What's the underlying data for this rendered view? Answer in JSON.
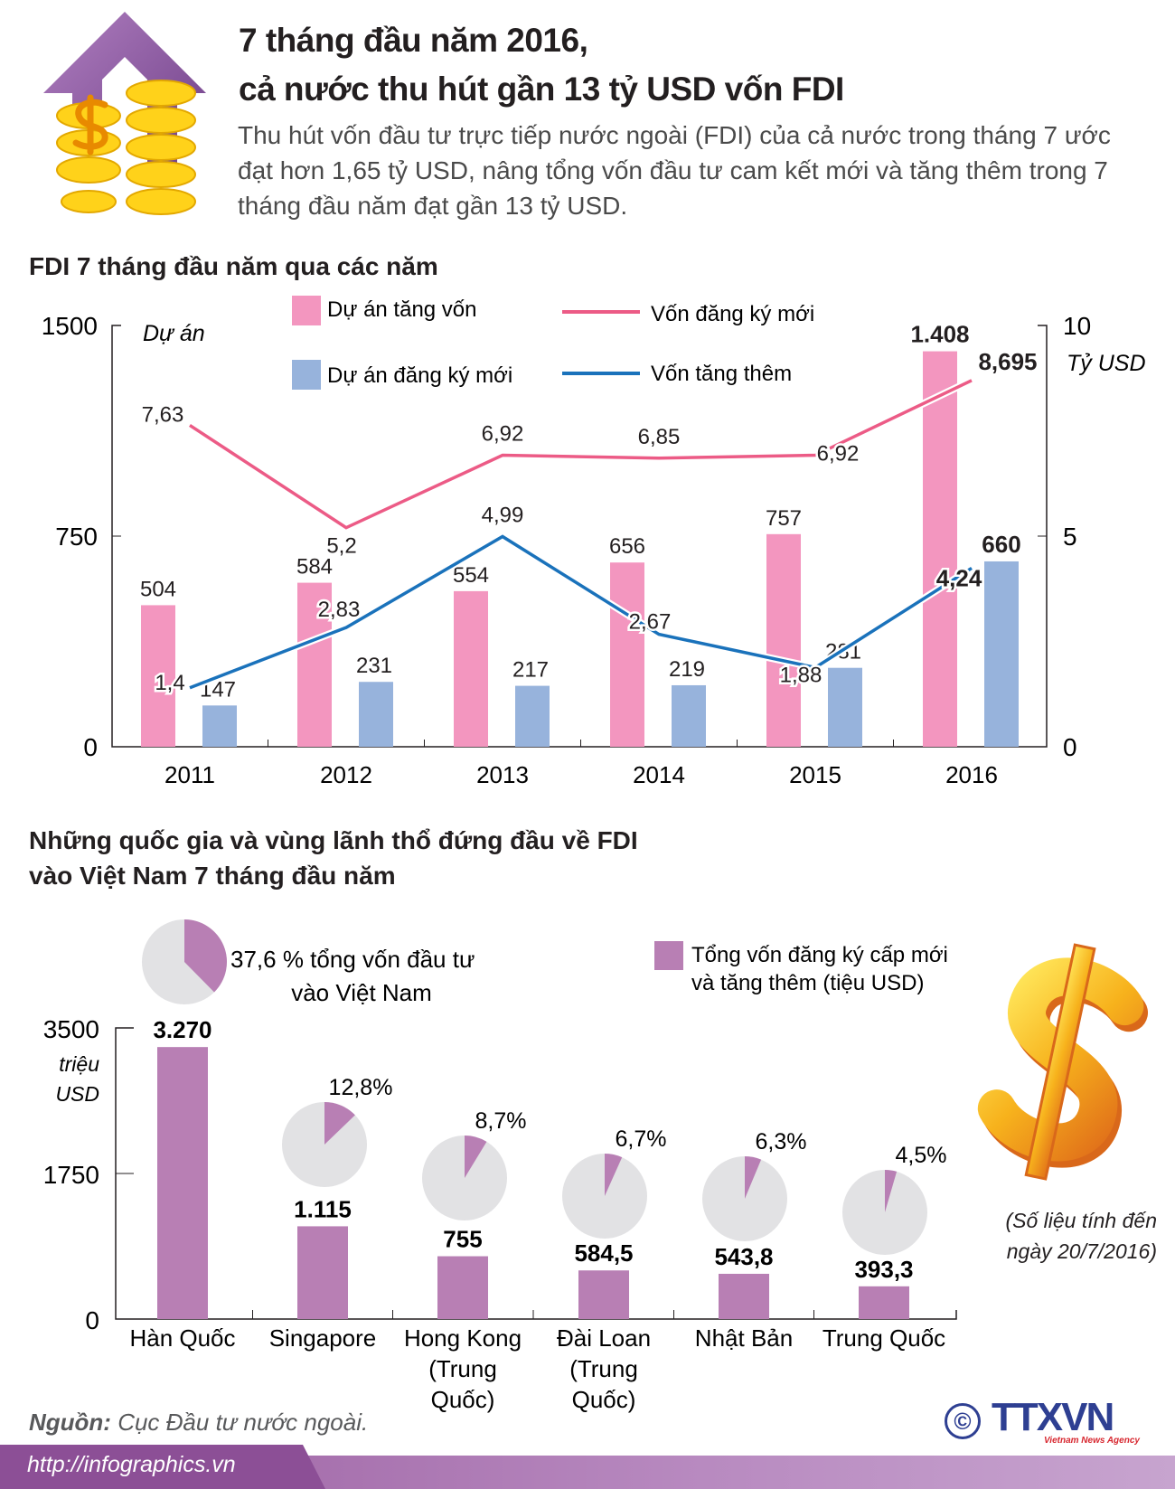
{
  "header": {
    "title_line1": "7 tháng đầu năm 2016,",
    "title_line2": "cả nước thu hút gần 13 tỷ USD vốn FDI",
    "intro": "Thu hút vốn đầu tư trực tiếp nước ngoài (FDI) của cả nước trong tháng 7 ước đạt hơn 1,65 tỷ USD, nâng tổng vốn đầu tư cam kết mới và tăng thêm trong 7 tháng đầu năm đạt gần 13 tỷ USD.",
    "icon": "arrow-up-coins-icon"
  },
  "section1": {
    "title": "FDI 7 tháng đầu năm qua các năm"
  },
  "section2": {
    "title_line1": "Những quốc gia và vùng lãnh thổ đứng đầu về FDI",
    "title_line2": "vào Việt Nam 7 tháng đầu năm"
  },
  "chart_data": [
    {
      "type": "bar+line",
      "categories": [
        "2011",
        "2012",
        "2013",
        "2014",
        "2015",
        "2016"
      ],
      "y_left": {
        "label": "Dự án",
        "ticks": [
          "1500",
          "750",
          "0"
        ],
        "range": [
          0,
          1500
        ]
      },
      "y_right": {
        "label": "Tỷ USD",
        "ticks": [
          "10",
          "5",
          "0"
        ],
        "range": [
          0,
          10
        ]
      },
      "bar_series": [
        {
          "name": "Dự án tăng vốn",
          "color": "#f396bf",
          "values": [
            504,
            584,
            554,
            656,
            757,
            1408
          ],
          "labels": [
            "504",
            "584",
            "554",
            "656",
            "757",
            "1.408"
          ]
        },
        {
          "name": "Dự án đăng ký mới",
          "color": "#97b3dc",
          "values": [
            147,
            231,
            217,
            219,
            281,
            660
          ],
          "labels": [
            "147",
            "231",
            "217",
            "219",
            "281",
            "660"
          ]
        }
      ],
      "line_series": [
        {
          "name": "Vốn đăng ký mới",
          "color": "#ec5b86",
          "values": [
            7.63,
            5.2,
            6.92,
            6.85,
            6.92,
            8.695
          ],
          "labels": [
            "7,63",
            "5,2",
            "6,92",
            "6,85",
            "6,92",
            "8,695"
          ]
        },
        {
          "name": "Vốn tăng thêm",
          "color": "#1a72bb",
          "values": [
            1.4,
            2.83,
            4.99,
            2.67,
            1.88,
            4.24
          ],
          "labels": [
            "1,4",
            "2,83",
            "4,99",
            "2,67",
            "1,88",
            "4,24"
          ]
        }
      ],
      "legend": "top",
      "grid": false
    },
    {
      "type": "bar+pie",
      "categories": [
        "Hàn Quốc",
        "Singapore",
        "Hong Kong (Trung Quốc)",
        "Đài Loan (Trung Quốc)",
        "Nhật Bản",
        "Trung Quốc"
      ],
      "category_lines": [
        [
          "Hàn Quốc"
        ],
        [
          "Singapore"
        ],
        [
          "Hong Kong",
          "(Trung",
          "Quốc)"
        ],
        [
          "Đài Loan",
          "(Trung",
          "Quốc)"
        ],
        [
          "Nhật Bản"
        ],
        [
          "Trung Quốc"
        ]
      ],
      "y_axis": {
        "label_line1": "triệu",
        "label_line2": "USD",
        "ticks": [
          "3500",
          "1750",
          "0"
        ],
        "range": [
          0,
          3500
        ]
      },
      "series": [
        {
          "name": "Tổng vốn đăng ký cấp mới và tăng thêm (tiệu USD)",
          "name_line1": "Tổng vốn đăng ký cấp mới",
          "name_line2": "và tăng thêm (tiệu USD)",
          "color": "#b87fb4",
          "values": [
            3270,
            1115,
            755,
            584.5,
            543.8,
            393.3
          ],
          "labels": [
            "3.270",
            "1.115",
            "755",
            "584,5",
            "543,8",
            "393,3"
          ]
        }
      ],
      "shares_percent": [
        37.6,
        12.8,
        8.7,
        6.7,
        6.3,
        4.5
      ],
      "share_labels": [
        "37,6 % tổng vốn đầu tư",
        "12,8%",
        "8,7%",
        "6,7%",
        "6,3%",
        "4,5%"
      ],
      "first_share_line2": "vào Việt Nam",
      "pie_colors": {
        "slice": "#b87fb4",
        "rest": "#e2e2e4"
      },
      "legend": "top-right"
    }
  ],
  "note": {
    "line1": "(Số liệu tính đến",
    "line2": "ngày 20/7/2016)"
  },
  "source": {
    "label": "Nguồn:",
    "text": " Cục Đầu tư nước ngoài."
  },
  "footer": {
    "url": "http://infographics.vn",
    "logo": "TTXVN",
    "logo_sub": "Vietnam News Agency",
    "copyright": "©"
  },
  "decor": {
    "dollar_icon": "dollar-sign-3d-icon"
  }
}
